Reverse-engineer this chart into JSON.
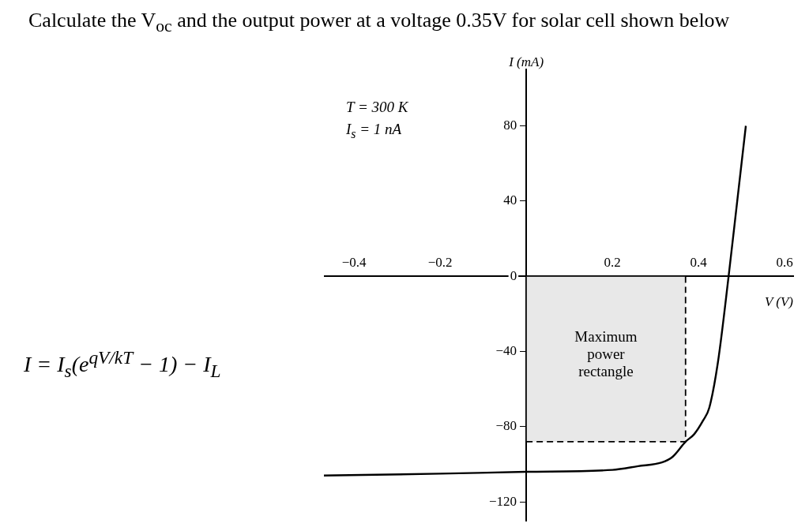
{
  "chart_data": {
    "type": "line",
    "title": "Calculate the V$_{oc}$ and the output power at a voltage 0.35V for solar cell shown below",
    "xlabel": "V (V)",
    "ylabel": "I (mA)",
    "series": [
      {
        "type": "area",
        "color": "#000000",
        "line_style": "dashed",
        "x": [
          0,
          0.37,
          0.37
        ],
        "values": [
          -88,
          -88,
          0
        ]
      },
      {
        "color": "#000000",
        "line_style": "solid",
        "x": [
          -0.47,
          -0.2,
          0,
          0.2,
          0.26,
          0.315,
          0.34,
          0.37,
          0.39,
          0.41,
          0.425,
          0.445,
          0.47,
          0.49,
          0.51
        ],
        "values": [
          -106,
          -105,
          -104,
          -103,
          -101,
          -99,
          -96,
          -88,
          -84,
          -77,
          -70,
          -46,
          0,
          40,
          80
        ]
      }
    ],
    "annotations": [
      "T = 300 K",
      "I$_{s}$ = 1 nA",
      "Maximum power rectangle",
      "I = I$_{s}$(e$^{qV/kT}$ − 1) − I$_{L}$"
    ],
    "xlim": [
      -0.47,
      0.62
    ],
    "ylim": [
      -130,
      110
    ],
    "xticks": [
      -0.4,
      -0.2,
      0.2,
      0.4,
      0.6
    ],
    "yticks": [
      -120,
      -80,
      -40,
      0,
      40,
      80
    ],
    "grid": false,
    "legend": false,
    "marker": "none"
  }
}
